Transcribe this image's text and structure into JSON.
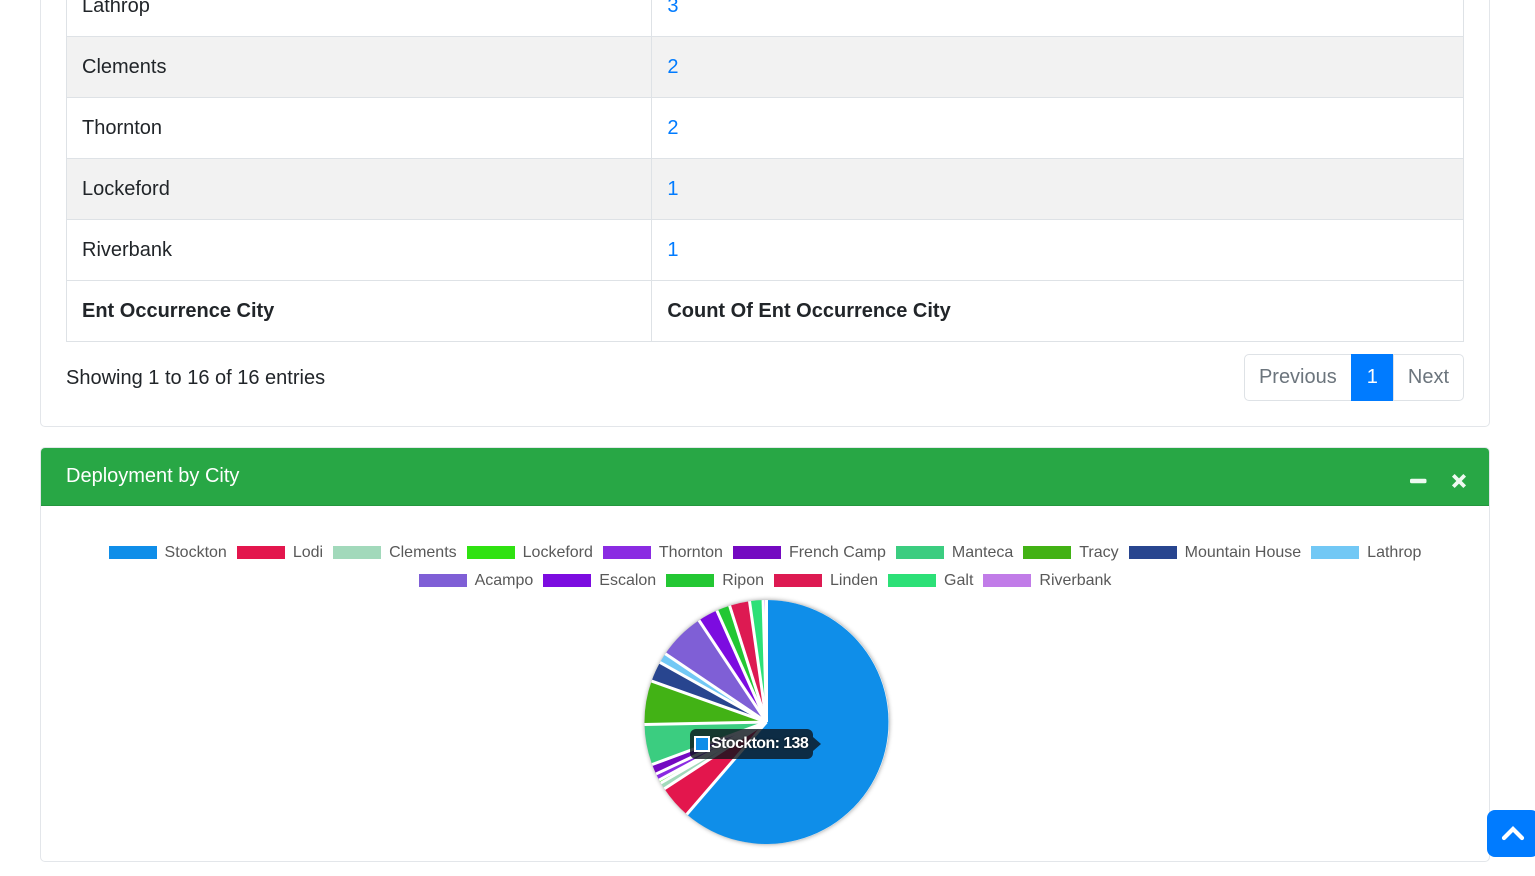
{
  "table_card": {
    "rows": [
      {
        "city": "Lathrop",
        "count": "3"
      },
      {
        "city": "Clements",
        "count": "2",
        "striped": true
      },
      {
        "city": "Thornton",
        "count": "2"
      },
      {
        "city": "Lockeford",
        "count": "1",
        "striped": true
      },
      {
        "city": "Riverbank",
        "count": "1"
      }
    ],
    "footer": {
      "city_header": "Ent Occurrence City",
      "count_header": "Count Of Ent Occurrence City"
    },
    "info": "Showing 1 to 16 of 16 entries",
    "pagination": {
      "previous_label": "Previous",
      "current_page": "1",
      "next_label": "Next"
    }
  },
  "chart_card": {
    "title": "Deployment by City",
    "tools": [
      "minimize-icon",
      "close-icon"
    ],
    "header_color": "#28a745",
    "tooltip": {
      "label": "Stockton",
      "value": 138,
      "text": "Stockton: 138"
    }
  },
  "chart_data": {
    "type": "pie",
    "title": "Deployment by City",
    "legend_position": "top",
    "legend_rows": [
      10,
      6
    ],
    "start_angle_deg": -90,
    "direction": "clockwise",
    "total": 225,
    "labels": [
      "Stockton",
      "Lodi",
      "Clements",
      "Lockeford",
      "Thornton",
      "French Camp",
      "Manteca",
      "Tracy",
      "Mountain House",
      "Lathrop",
      "Acampo",
      "Escalon",
      "Ripon",
      "Linden",
      "Galt",
      "Riverbank"
    ],
    "values": [
      138,
      10,
      2,
      1,
      2,
      3,
      12,
      13,
      6,
      3,
      14,
      6,
      4,
      6,
      4,
      1
    ],
    "colors": [
      "#0f8ee9",
      "#e3164d",
      "#a2d9bb",
      "#2fe211",
      "#8a2be2",
      "#7409c1",
      "#3bcd80",
      "#42b215",
      "#28458f",
      "#72c8f5",
      "#7f5fd6",
      "#7c0ce0",
      "#23c733",
      "#dd1a52",
      "#2ce077",
      "#c17ce8"
    ],
    "pie_center": [
      725.5,
      216
    ],
    "pie_radius": 122
  },
  "scroll_top": {
    "icon": "chevron-up-icon",
    "color": "#007bff"
  },
  "colors": {
    "link": "#007bff",
    "pagination_active": "#007bff",
    "header_green": "#28a745",
    "stripe": "#f2f2f2",
    "border": "#dee2e6"
  }
}
